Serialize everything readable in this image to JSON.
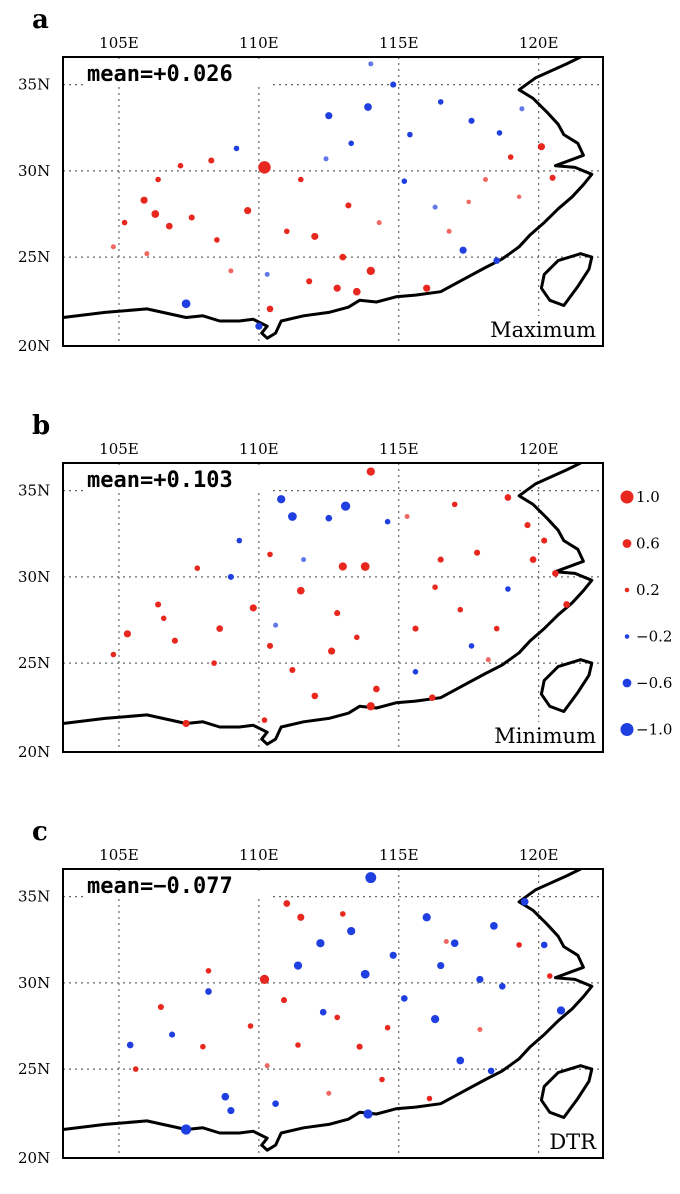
{
  "panels": [
    {
      "letter": "a",
      "mean_label": "mean=+0.026",
      "tag": "Maximum",
      "lon_ticks": [
        "105E",
        "110E",
        "115E",
        "120E"
      ],
      "lat_ticks": [
        "35N",
        "30N",
        "25N",
        "20N"
      ],
      "stations": [
        [
          110.2,
          30.2,
          0.95
        ],
        [
          105.9,
          28.3,
          0.45
        ],
        [
          106.3,
          27.5,
          0.5
        ],
        [
          106.8,
          26.8,
          0.4
        ],
        [
          107.6,
          27.3,
          0.35
        ],
        [
          108.5,
          26.0,
          0.3
        ],
        [
          109.6,
          27.7,
          0.45
        ],
        [
          111.0,
          26.5,
          0.3
        ],
        [
          112.0,
          26.2,
          0.45
        ],
        [
          113.0,
          25.0,
          0.4
        ],
        [
          114.0,
          24.2,
          0.55
        ],
        [
          113.5,
          23.0,
          0.5
        ],
        [
          112.8,
          23.2,
          0.45
        ],
        [
          111.8,
          23.6,
          0.35
        ],
        [
          110.4,
          22.0,
          0.4
        ],
        [
          116.0,
          23.2,
          0.45
        ],
        [
          113.2,
          28.0,
          0.35
        ],
        [
          111.5,
          29.5,
          0.3
        ],
        [
          107.2,
          30.3,
          0.3
        ],
        [
          108.3,
          30.6,
          0.35
        ],
        [
          106.4,
          29.5,
          0.3
        ],
        [
          105.2,
          27.0,
          0.3
        ],
        [
          104.8,
          25.6,
          0.25
        ],
        [
          106.0,
          25.2,
          0.25
        ],
        [
          114.3,
          27.0,
          0.25
        ],
        [
          116.8,
          26.5,
          0.25
        ],
        [
          117.5,
          28.2,
          0.2
        ],
        [
          119.0,
          30.8,
          0.3
        ],
        [
          120.1,
          31.4,
          0.45
        ],
        [
          120.5,
          29.6,
          0.35
        ],
        [
          118.1,
          29.5,
          0.25
        ],
        [
          119.3,
          28.5,
          0.2
        ],
        [
          113.9,
          33.7,
          -0.5
        ],
        [
          112.5,
          33.2,
          -0.45
        ],
        [
          114.8,
          35.0,
          -0.35
        ],
        [
          116.5,
          34.0,
          -0.3
        ],
        [
          117.6,
          32.9,
          -0.35
        ],
        [
          115.4,
          32.1,
          -0.3
        ],
        [
          113.3,
          31.6,
          -0.3
        ],
        [
          109.2,
          31.3,
          -0.3
        ],
        [
          107.4,
          22.3,
          -0.6
        ],
        [
          110.0,
          21.0,
          -0.45
        ],
        [
          117.3,
          25.4,
          -0.45
        ],
        [
          118.5,
          24.8,
          -0.4
        ],
        [
          116.3,
          27.9,
          -0.25
        ],
        [
          118.6,
          32.2,
          -0.3
        ],
        [
          119.4,
          33.6,
          -0.25
        ],
        [
          115.2,
          29.4,
          -0.3
        ],
        [
          112.4,
          30.7,
          -0.25
        ],
        [
          114.0,
          36.2,
          -0.25
        ],
        [
          109.0,
          24.2,
          0.25
        ],
        [
          110.3,
          24.0,
          -0.25
        ]
      ]
    },
    {
      "letter": "b",
      "mean_label": "mean=+0.103",
      "tag": "Minimum",
      "lon_ticks": [
        "105E",
        "110E",
        "115E",
        "120E"
      ],
      "lat_ticks": [
        "35N",
        "30N",
        "25N",
        "20N"
      ],
      "stations": [
        [
          114.0,
          36.1,
          0.55
        ],
        [
          113.8,
          30.6,
          0.6
        ],
        [
          113.0,
          30.6,
          0.55
        ],
        [
          111.5,
          29.2,
          0.5
        ],
        [
          112.6,
          25.7,
          0.45
        ],
        [
          114.0,
          22.5,
          0.55
        ],
        [
          114.2,
          23.5,
          0.4
        ],
        [
          112.0,
          23.1,
          0.4
        ],
        [
          109.8,
          28.2,
          0.45
        ],
        [
          108.6,
          27.0,
          0.4
        ],
        [
          107.0,
          26.3,
          0.35
        ],
        [
          106.4,
          28.4,
          0.35
        ],
        [
          105.3,
          26.7,
          0.45
        ],
        [
          104.8,
          25.5,
          0.3
        ],
        [
          106.6,
          27.6,
          0.3
        ],
        [
          107.8,
          30.5,
          0.3
        ],
        [
          108.4,
          25.0,
          0.3
        ],
        [
          110.4,
          26.0,
          0.35
        ],
        [
          111.2,
          24.6,
          0.35
        ],
        [
          112.8,
          27.9,
          0.35
        ],
        [
          113.5,
          26.5,
          0.3
        ],
        [
          115.6,
          27.0,
          0.35
        ],
        [
          116.5,
          31.0,
          0.35
        ],
        [
          117.8,
          31.4,
          0.35
        ],
        [
          118.9,
          34.6,
          0.4
        ],
        [
          119.6,
          33.0,
          0.35
        ],
        [
          119.8,
          31.0,
          0.4
        ],
        [
          120.2,
          32.1,
          0.35
        ],
        [
          120.6,
          30.2,
          0.4
        ],
        [
          121.0,
          28.4,
          0.4
        ],
        [
          116.3,
          29.4,
          0.3
        ],
        [
          117.2,
          28.1,
          0.3
        ],
        [
          118.5,
          27.0,
          0.3
        ],
        [
          117.0,
          34.2,
          0.3
        ],
        [
          115.3,
          33.5,
          0.25
        ],
        [
          116.2,
          23.0,
          0.4
        ],
        [
          107.4,
          21.5,
          0.45
        ],
        [
          110.2,
          21.7,
          0.3
        ],
        [
          110.4,
          31.3,
          0.3
        ],
        [
          118.2,
          25.2,
          0.25
        ],
        [
          110.8,
          34.5,
          -0.55
        ],
        [
          111.2,
          33.5,
          -0.6
        ],
        [
          113.1,
          34.1,
          -0.65
        ],
        [
          112.5,
          33.4,
          -0.4
        ],
        [
          114.6,
          33.2,
          -0.3
        ],
        [
          109.0,
          30.0,
          -0.35
        ],
        [
          109.3,
          32.1,
          -0.3
        ],
        [
          115.6,
          24.5,
          -0.3
        ],
        [
          117.6,
          26.0,
          -0.3
        ],
        [
          118.9,
          29.3,
          -0.3
        ],
        [
          111.6,
          31.0,
          -0.25
        ],
        [
          110.6,
          27.2,
          -0.25
        ]
      ]
    },
    {
      "letter": "c",
      "mean_label": "mean=−0.077",
      "tag": "DTR",
      "lon_ticks": [
        "105E",
        "110E",
        "115E",
        "120E"
      ],
      "lat_ticks": [
        "35N",
        "30N",
        "25N",
        "20N"
      ],
      "stations": [
        [
          114.0,
          36.1,
          -0.8
        ],
        [
          113.8,
          30.5,
          -0.6
        ],
        [
          113.3,
          33.0,
          -0.55
        ],
        [
          112.2,
          32.3,
          -0.55
        ],
        [
          114.8,
          31.6,
          -0.45
        ],
        [
          116.0,
          33.8,
          -0.55
        ],
        [
          117.0,
          32.3,
          -0.5
        ],
        [
          118.4,
          33.3,
          -0.5
        ],
        [
          119.5,
          34.7,
          -0.5
        ],
        [
          116.5,
          31.0,
          -0.45
        ],
        [
          117.9,
          30.2,
          -0.45
        ],
        [
          116.3,
          27.9,
          -0.55
        ],
        [
          117.2,
          25.5,
          -0.5
        ],
        [
          118.3,
          24.9,
          -0.4
        ],
        [
          118.7,
          29.8,
          -0.4
        ],
        [
          120.2,
          32.2,
          -0.4
        ],
        [
          120.8,
          28.4,
          -0.55
        ],
        [
          113.9,
          22.4,
          -0.65
        ],
        [
          107.4,
          21.5,
          -0.75
        ],
        [
          109.0,
          22.6,
          -0.45
        ],
        [
          108.8,
          23.4,
          -0.5
        ],
        [
          110.6,
          23.0,
          -0.4
        ],
        [
          111.4,
          31.0,
          -0.55
        ],
        [
          112.3,
          28.3,
          -0.4
        ],
        [
          108.2,
          29.5,
          -0.4
        ],
        [
          105.4,
          26.4,
          -0.4
        ],
        [
          106.9,
          27.0,
          -0.35
        ],
        [
          115.2,
          29.1,
          -0.4
        ],
        [
          110.2,
          30.2,
          0.65
        ],
        [
          111.5,
          33.8,
          0.45
        ],
        [
          111.0,
          34.6,
          0.4
        ],
        [
          113.0,
          34.0,
          0.3
        ],
        [
          110.9,
          29.0,
          0.35
        ],
        [
          112.8,
          28.0,
          0.3
        ],
        [
          113.6,
          26.3,
          0.35
        ],
        [
          111.4,
          26.4,
          0.3
        ],
        [
          109.7,
          27.5,
          0.3
        ],
        [
          108.0,
          26.3,
          0.3
        ],
        [
          106.5,
          28.6,
          0.35
        ],
        [
          105.6,
          25.0,
          0.3
        ],
        [
          108.2,
          30.7,
          0.3
        ],
        [
          114.6,
          27.4,
          0.3
        ],
        [
          114.4,
          24.4,
          0.3
        ],
        [
          116.1,
          23.3,
          0.3
        ],
        [
          112.5,
          23.6,
          0.25
        ],
        [
          110.3,
          25.2,
          0.25
        ],
        [
          119.3,
          32.2,
          0.3
        ],
        [
          116.7,
          32.4,
          0.25
        ],
        [
          120.4,
          30.4,
          0.3
        ],
        [
          117.9,
          27.3,
          0.25
        ]
      ]
    }
  ],
  "legend": {
    "values": [
      1.0,
      0.6,
      0.2,
      -0.2,
      -0.6,
      -1.0
    ],
    "labels": [
      "1.0",
      "0.6",
      "0.2",
      "−0.2",
      "−0.6",
      "−1.0"
    ]
  },
  "colors": {
    "positive": "#e8281f",
    "negative": "#1f3fe0"
  }
}
